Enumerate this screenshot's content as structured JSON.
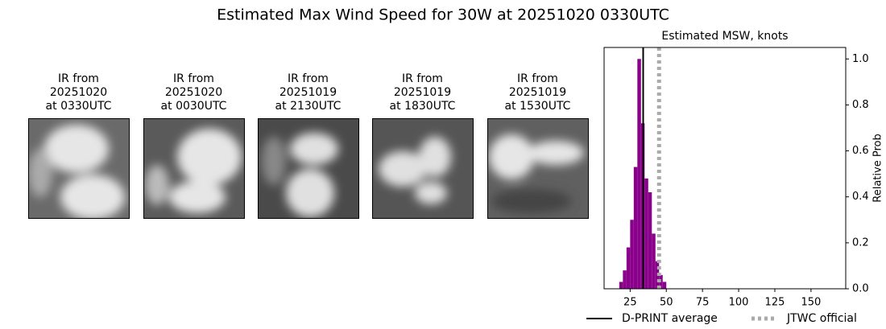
{
  "title": "Estimated Max Wind Speed for 30W at 20251020 0330UTC",
  "panels": [
    {
      "lines": [
        "IR from",
        "20251020",
        "at 0330UTC"
      ]
    },
    {
      "lines": [
        "IR from",
        "20251020",
        "at 0030UTC"
      ]
    },
    {
      "lines": [
        "IR from",
        "20251019",
        "at 2130UTC"
      ]
    },
    {
      "lines": [
        "IR from",
        "20251019",
        "at 1830UTC"
      ]
    },
    {
      "lines": [
        "IR from",
        "20251019",
        "at 1530UTC"
      ]
    }
  ],
  "chart_data": {
    "type": "histogram",
    "title": "Estimated MSW, knots",
    "y_label": "Relative Prob",
    "bins": [
      17.5,
      20,
      22.5,
      25,
      27.5,
      30,
      32.5,
      35,
      37.5,
      40,
      42.5,
      45,
      47.5,
      50
    ],
    "values": [
      0.03,
      0.08,
      0.18,
      0.3,
      0.53,
      1.0,
      0.72,
      0.48,
      0.42,
      0.24,
      0.12,
      0.06,
      0.03
    ],
    "color": "#8b008b",
    "xlim": [
      7,
      174
    ],
    "xticks": [
      25,
      50,
      75,
      100,
      125,
      150
    ],
    "ylim": [
      0,
      1.05
    ],
    "yticks": [
      {
        "value": 0,
        "label": "0.0"
      },
      {
        "value": 0.2,
        "label": "0.2"
      },
      {
        "value": 0.4,
        "label": "0.4"
      },
      {
        "value": 0.6,
        "label": "0.6"
      },
      {
        "value": 0.8,
        "label": "0.8"
      },
      {
        "value": 1,
        "label": "1.0"
      }
    ],
    "lines": [
      {
        "name": "D-PRINT average",
        "color": "#000000",
        "x": 34,
        "style": "solid"
      },
      {
        "name": "JTWC official",
        "color": "#aaaaaa",
        "x": 45,
        "style": "dotted"
      }
    ],
    "legend": "bottom"
  }
}
